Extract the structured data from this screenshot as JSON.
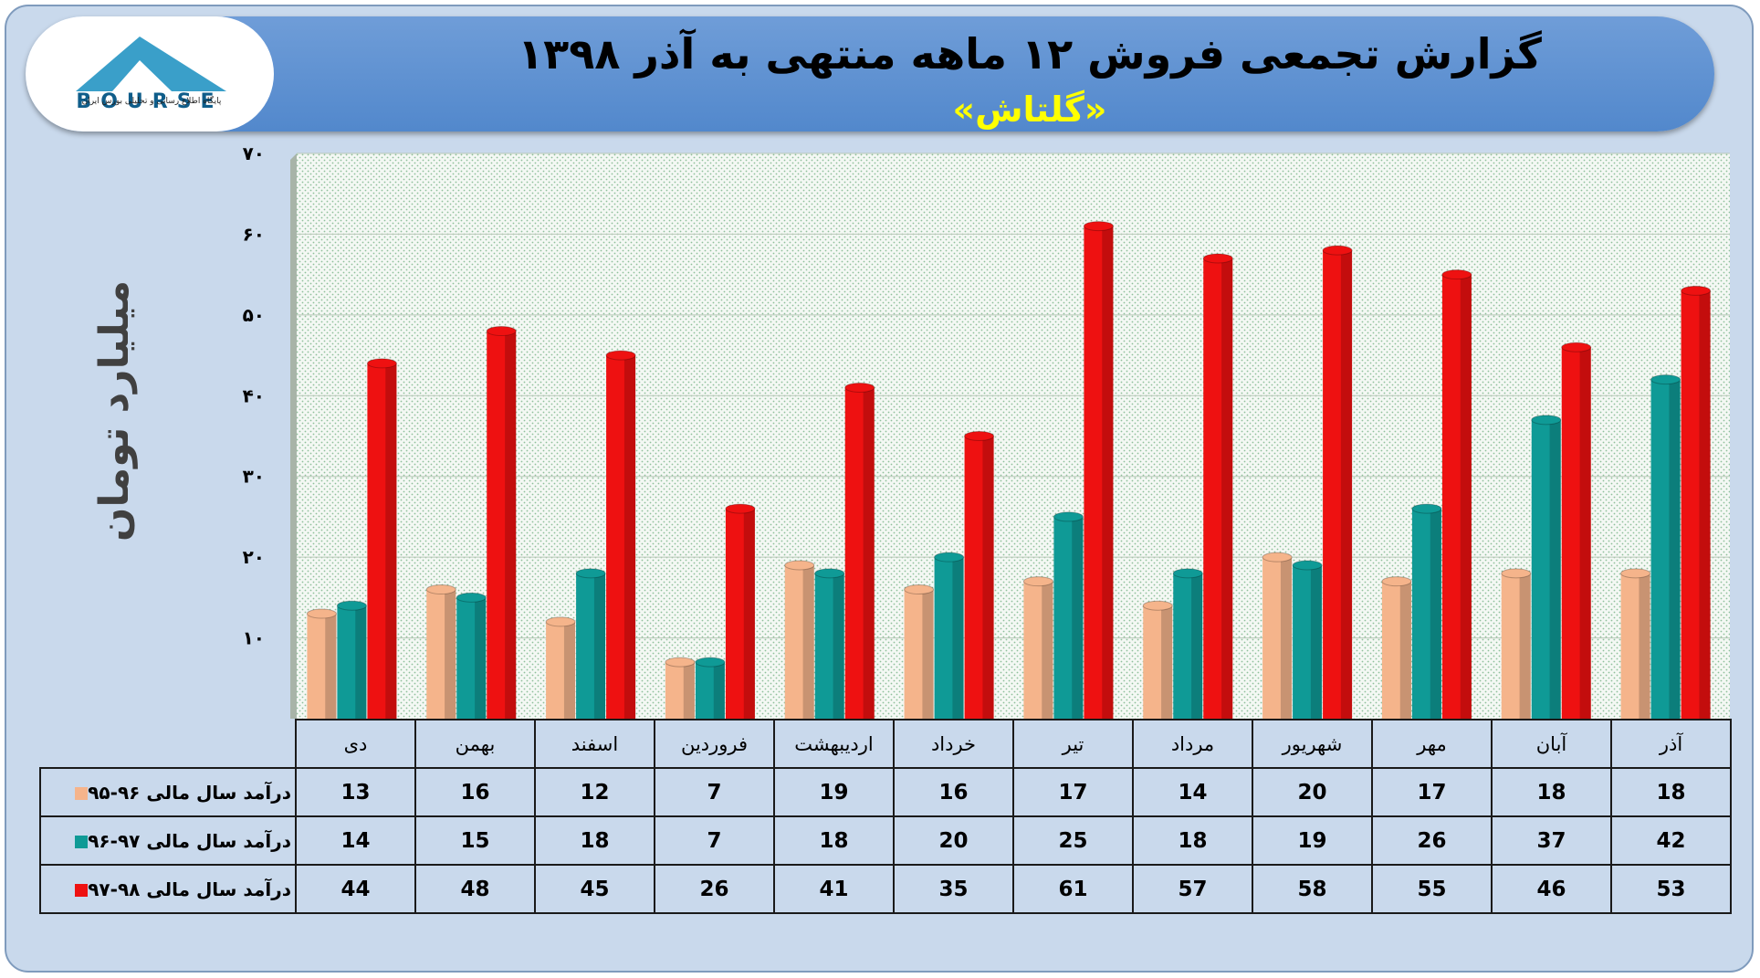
{
  "header": {
    "title": "گزارش تجمعی فروش ۱۲ ماهه منتهی به آذر ۱۳۹۸",
    "subtitle": "«گلتاش»"
  },
  "logo": {
    "text": "BOURSE",
    "caption": "پایگاه اطلاع رسانی و تحلیلی بورس ایران"
  },
  "colors": {
    "series_95_96": "#f5b48b",
    "series_96_97": "#0f9a96",
    "series_97_98": "#ee1111",
    "plot_bg": "#f2f7f2"
  },
  "chart_data": {
    "type": "bar",
    "ylabel": "میلیارد تومان",
    "ylim": [
      0,
      70
    ],
    "yticks": [
      "۱۰",
      "۲۰",
      "۳۰",
      "۴۰",
      "۵۰",
      "۶۰",
      "۷۰"
    ],
    "categories": [
      "دی",
      "بهمن",
      "اسفند",
      "فروردین",
      "اردیبهشت",
      "خرداد",
      "تیر",
      "مرداد",
      "شهریور",
      "مهر",
      "آبان",
      "آذر"
    ],
    "series": [
      {
        "name": "درآمد سال مالی ۹۶-۹۵",
        "values": [
          13,
          16,
          12,
          7,
          19,
          16,
          17,
          14,
          20,
          17,
          18,
          18
        ]
      },
      {
        "name": "درآمد سال مالی ۹۷-۹۶",
        "values": [
          14,
          15,
          18,
          7,
          18,
          20,
          25,
          18,
          19,
          26,
          37,
          42
        ]
      },
      {
        "name": "درآمد سال مالی ۹۸-۹۷",
        "values": [
          44,
          48,
          45,
          26,
          41,
          35,
          61,
          57,
          58,
          55,
          46,
          53
        ]
      }
    ]
  }
}
